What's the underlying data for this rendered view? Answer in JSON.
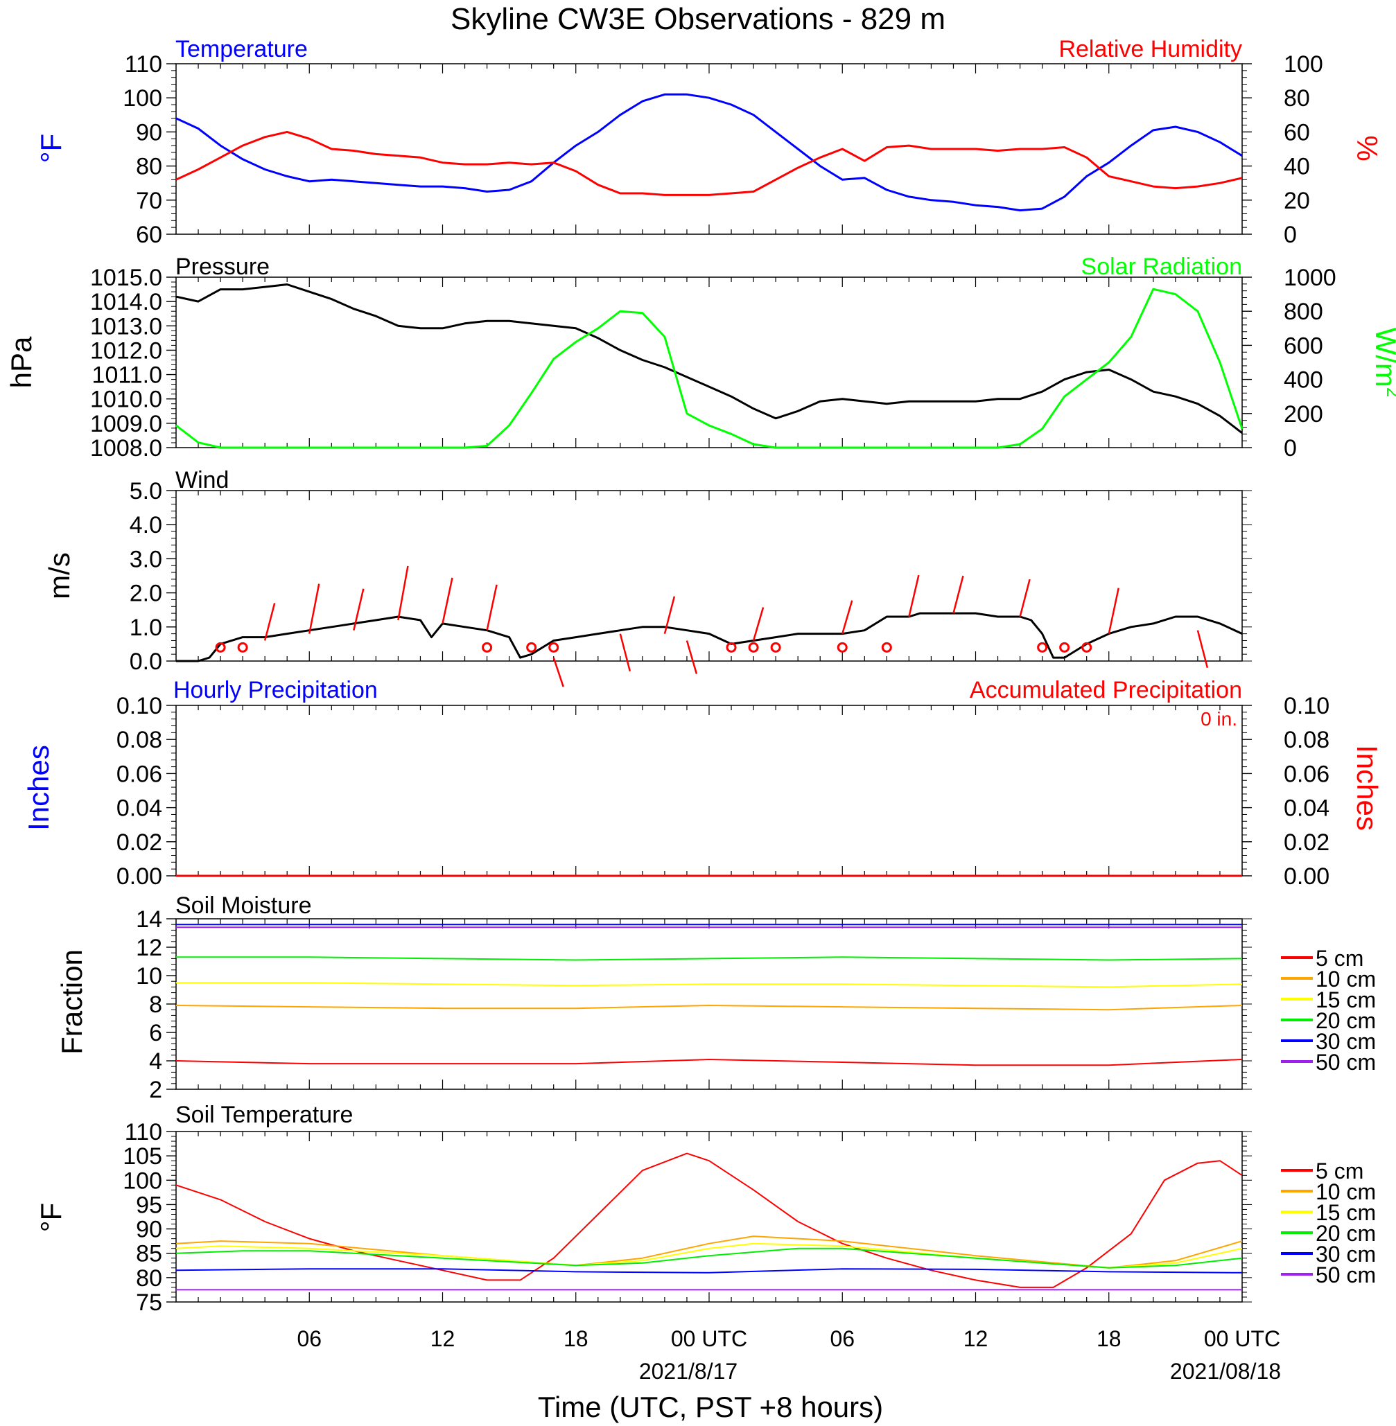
{
  "title": "Skyline CW3E Observations - 829 m",
  "xaxis": {
    "title": "Time (UTC, PST +8 hours)",
    "ticks": [
      "06",
      "12",
      "18",
      "00 UTC",
      "06",
      "12",
      "18",
      "00 UTC"
    ],
    "dates": [
      "2021/8/17",
      "2021/08/18"
    ],
    "start_utc": "2021-08-16 00:00",
    "end_utc": "2021-08-18 00:00"
  },
  "chart_data": [
    {
      "type": "line",
      "id": "temp_rh",
      "left_title": "Temperature",
      "right_title": "Relative Humidity",
      "ylabel_left": "°F",
      "ylabel_right": "%",
      "ylim_left": [
        60,
        110
      ],
      "ylim_right": [
        0,
        100
      ],
      "yticks_left": [
        "60",
        "70",
        "80",
        "90",
        "100",
        "110"
      ],
      "yticks_right": [
        "0",
        "20",
        "40",
        "60",
        "80",
        "100"
      ],
      "series": [
        {
          "axis": "left",
          "color": "#0000ff",
          "x": [
            0,
            1,
            2,
            3,
            4,
            5,
            6,
            7,
            8,
            9,
            10,
            11,
            12,
            13,
            14,
            15,
            16,
            17,
            18,
            19,
            20,
            21,
            22,
            23,
            24,
            25,
            26,
            27,
            28,
            29,
            30,
            31,
            32,
            33,
            34,
            35,
            36,
            37,
            38,
            39,
            40,
            41,
            42,
            43,
            44,
            45,
            46,
            47,
            48
          ],
          "y": [
            94,
            91,
            86,
            82,
            79,
            77,
            75.5,
            76,
            75.5,
            75,
            74.5,
            74,
            74,
            73.5,
            72.5,
            73,
            75.5,
            81,
            86,
            90,
            95,
            99,
            101,
            101,
            100,
            98,
            95,
            90,
            85,
            80,
            76,
            76.5,
            73,
            71,
            70,
            69.5,
            68.5,
            68,
            67,
            67.5,
            71,
            77,
            81,
            86,
            90.5,
            91.5,
            90,
            87,
            83
          ]
        },
        {
          "axis": "right",
          "color": "#ff0000",
          "x": [
            0,
            1,
            2,
            3,
            4,
            5,
            6,
            7,
            8,
            9,
            10,
            11,
            12,
            13,
            14,
            15,
            16,
            17,
            18,
            19,
            20,
            21,
            22,
            23,
            24,
            25,
            26,
            27,
            28,
            29,
            30,
            31,
            32,
            33,
            34,
            35,
            36,
            37,
            38,
            39,
            40,
            41,
            42,
            43,
            44,
            45,
            46,
            47,
            48
          ],
          "y": [
            32,
            38,
            45,
            52,
            57,
            60,
            56,
            50,
            49,
            47,
            46,
            45,
            42,
            41,
            41,
            42,
            41,
            42,
            37,
            29,
            24,
            24,
            23,
            23,
            23,
            24,
            25,
            32,
            39,
            45,
            50,
            43,
            51,
            52,
            50,
            50,
            50,
            49,
            50,
            50,
            51,
            45,
            34,
            31,
            28,
            27,
            28,
            30,
            33
          ]
        }
      ]
    },
    {
      "type": "line",
      "id": "pressure_solar",
      "left_title": "Pressure",
      "right_title": "Solar Radiation",
      "ylabel_left": "hPa",
      "ylabel_right": "W/m",
      "ylabel_right_sup": "2",
      "ylim_left": [
        1008.0,
        1015.0
      ],
      "ylim_right": [
        0,
        1000
      ],
      "yticks_left": [
        "1008.0",
        "1009.0",
        "1010.0",
        "1011.0",
        "1012.0",
        "1013.0",
        "1014.0",
        "1015.0"
      ],
      "yticks_right": [
        "0",
        "200",
        "400",
        "600",
        "800",
        "1000"
      ],
      "series": [
        {
          "axis": "left",
          "color": "#000000",
          "x": [
            0,
            1,
            2,
            3,
            4,
            5,
            6,
            7,
            8,
            9,
            10,
            11,
            12,
            13,
            14,
            15,
            16,
            17,
            18,
            19,
            20,
            21,
            22,
            23,
            24,
            25,
            26,
            27,
            28,
            29,
            30,
            31,
            32,
            33,
            34,
            35,
            36,
            37,
            38,
            39,
            40,
            41,
            42,
            43,
            44,
            45,
            46,
            47,
            48
          ],
          "y": [
            1014.2,
            1014.0,
            1014.5,
            1014.5,
            1014.6,
            1014.7,
            1014.4,
            1014.1,
            1013.7,
            1013.4,
            1013.0,
            1012.9,
            1012.9,
            1013.1,
            1013.2,
            1013.2,
            1013.1,
            1013.0,
            1012.9,
            1012.5,
            1012.0,
            1011.6,
            1011.3,
            1010.9,
            1010.5,
            1010.1,
            1009.6,
            1009.2,
            1009.5,
            1009.9,
            1010.0,
            1009.9,
            1009.8,
            1009.9,
            1009.9,
            1009.9,
            1009.9,
            1010.0,
            1010.0,
            1010.3,
            1010.8,
            1011.1,
            1011.2,
            1010.8,
            1010.3,
            1010.1,
            1009.8,
            1009.3,
            1008.6
          ]
        },
        {
          "axis": "right",
          "color": "#00ff00",
          "x": [
            0,
            1,
            2,
            3,
            4,
            5,
            6,
            7,
            8,
            9,
            10,
            11,
            12,
            13,
            14,
            15,
            16,
            17,
            18,
            19,
            20,
            21,
            22,
            23,
            24,
            25,
            26,
            27,
            28,
            29,
            30,
            31,
            32,
            33,
            34,
            35,
            36,
            37,
            38,
            39,
            40,
            41,
            42,
            43,
            44,
            45,
            46,
            47,
            48
          ],
          "y": [
            130,
            30,
            0,
            0,
            0,
            0,
            0,
            0,
            0,
            0,
            0,
            0,
            0,
            0,
            10,
            130,
            320,
            520,
            620,
            700,
            800,
            790,
            650,
            200,
            130,
            80,
            20,
            0,
            0,
            0,
            0,
            0,
            0,
            0,
            0,
            0,
            0,
            0,
            20,
            110,
            300,
            400,
            500,
            650,
            930,
            900,
            800,
            500,
            110
          ]
        }
      ]
    },
    {
      "type": "line",
      "id": "wind",
      "left_title": "Wind",
      "ylabel_left": "m/s",
      "ylim_left": [
        0.0,
        5.0
      ],
      "yticks_left": [
        "0.0",
        "1.0",
        "2.0",
        "3.0",
        "4.0",
        "5.0"
      ],
      "series": [
        {
          "axis": "left",
          "color": "#000000",
          "x": [
            0,
            1,
            1.5,
            2,
            3,
            4,
            5,
            6,
            7,
            8,
            9,
            10,
            11,
            11.5,
            12,
            13,
            14,
            15,
            15.5,
            16,
            17,
            18,
            19,
            20,
            21,
            22,
            23,
            24,
            25,
            26,
            27,
            28,
            29,
            30,
            31,
            32,
            33,
            33.5,
            34,
            35,
            36,
            37,
            38,
            38.5,
            39,
            39.5,
            40,
            41,
            42,
            43,
            44,
            45,
            46,
            47,
            48
          ],
          "y": [
            0,
            0,
            0.1,
            0.5,
            0.7,
            0.7,
            0.8,
            0.9,
            1.0,
            1.1,
            1.2,
            1.3,
            1.2,
            0.7,
            1.1,
            1.0,
            0.9,
            0.7,
            0.1,
            0.2,
            0.6,
            0.7,
            0.8,
            0.9,
            1.0,
            1.0,
            0.9,
            0.8,
            0.5,
            0.6,
            0.7,
            0.8,
            0.8,
            0.8,
            0.9,
            1.3,
            1.3,
            1.4,
            1.4,
            1.4,
            1.4,
            1.3,
            1.3,
            1.2,
            0.8,
            0.1,
            0.1,
            0.5,
            0.8,
            1.0,
            1.1,
            1.3,
            1.3,
            1.1,
            0.8
          ]
        }
      ],
      "barb_color": "#ff0000"
    },
    {
      "type": "line",
      "id": "precip",
      "left_title": "Hourly Precipitation",
      "right_title": "Accumulated Precipitation",
      "annotation": "0 in.",
      "ylabel_left": "Inches",
      "ylabel_right": "Inches",
      "ylim_left": [
        0.0,
        0.1
      ],
      "ylim_right": [
        0.0,
        0.1
      ],
      "yticks_left": [
        "0.00",
        "0.02",
        "0.04",
        "0.06",
        "0.08",
        "0.10"
      ],
      "yticks_right": [
        "0.00",
        "0.02",
        "0.04",
        "0.06",
        "0.08",
        "0.10"
      ],
      "series": [
        {
          "axis": "left",
          "color": "#ff0000",
          "x": [
            0,
            48
          ],
          "y": [
            0,
            0
          ]
        }
      ]
    },
    {
      "type": "line",
      "id": "soil_moisture",
      "left_title": "Soil Moisture",
      "ylabel_left": "Fraction",
      "ylim_left": [
        2,
        14
      ],
      "yticks_left": [
        "2",
        "4",
        "6",
        "8",
        "10",
        "12",
        "14"
      ],
      "legend": [
        "5 cm",
        "10 cm",
        "15 cm",
        "20 cm",
        "30 cm",
        "50 cm"
      ],
      "legend_colors": [
        "#ff0000",
        "#ffa500",
        "#ffff00",
        "#00ee00",
        "#0000ff",
        "#a020f0"
      ],
      "series": [
        {
          "color": "#ff0000",
          "x": [
            0,
            6,
            12,
            18,
            24,
            30,
            36,
            42,
            48
          ],
          "y": [
            4.0,
            3.8,
            3.8,
            3.8,
            4.1,
            3.9,
            3.7,
            3.7,
            4.1
          ]
        },
        {
          "color": "#ffa500",
          "x": [
            0,
            6,
            12,
            18,
            24,
            30,
            36,
            42,
            48
          ],
          "y": [
            7.9,
            7.8,
            7.7,
            7.7,
            7.9,
            7.8,
            7.7,
            7.6,
            7.9
          ]
        },
        {
          "color": "#ffff00",
          "x": [
            0,
            6,
            12,
            18,
            24,
            30,
            36,
            42,
            48
          ],
          "y": [
            9.5,
            9.5,
            9.4,
            9.3,
            9.4,
            9.4,
            9.3,
            9.2,
            9.4
          ]
        },
        {
          "color": "#00ee00",
          "x": [
            0,
            6,
            12,
            18,
            24,
            30,
            36,
            42,
            48
          ],
          "y": [
            11.3,
            11.3,
            11.2,
            11.1,
            11.2,
            11.3,
            11.2,
            11.1,
            11.2
          ]
        },
        {
          "color": "#0000ff",
          "x": [
            0,
            48
          ],
          "y": [
            13.6,
            13.6
          ]
        },
        {
          "color": "#a020f0",
          "x": [
            0,
            48
          ],
          "y": [
            13.4,
            13.4
          ]
        }
      ]
    },
    {
      "type": "line",
      "id": "soil_temp",
      "left_title": "Soil Temperature",
      "ylabel_left": "°F",
      "ylim_left": [
        75,
        110
      ],
      "yticks_left": [
        "75",
        "80",
        "85",
        "90",
        "95",
        "100",
        "105",
        "110"
      ],
      "legend": [
        "5 cm",
        "10 cm",
        "15 cm",
        "20 cm",
        "30 cm",
        "50 cm"
      ],
      "legend_colors": [
        "#ff0000",
        "#ffa500",
        "#ffff00",
        "#00ee00",
        "#0000ff",
        "#a020f0"
      ],
      "series": [
        {
          "color": "#ff0000",
          "x": [
            0,
            2,
            4,
            6,
            8,
            10,
            12,
            14,
            15.5,
            17,
            19,
            21,
            23,
            24,
            26,
            28,
            30,
            32,
            34,
            36,
            38,
            39.5,
            41,
            43,
            44.5,
            46,
            47,
            48
          ],
          "y": [
            99,
            96,
            91.5,
            88,
            85.5,
            83.5,
            81.5,
            79.5,
            79.5,
            84,
            93,
            102,
            105.5,
            104,
            98,
            91.5,
            87,
            84,
            81.5,
            79.5,
            78,
            78,
            82,
            89,
            100,
            103.5,
            104,
            101
          ]
        },
        {
          "color": "#ffa500",
          "x": [
            0,
            2,
            6,
            12,
            18,
            21,
            24,
            26,
            30,
            36,
            42,
            45,
            48
          ],
          "y": [
            87,
            87.5,
            87,
            84.5,
            82.5,
            84,
            87,
            88.5,
            87.5,
            84.5,
            82,
            83.5,
            87.5
          ]
        },
        {
          "color": "#ffff00",
          "x": [
            0,
            2,
            6,
            12,
            18,
            21,
            24,
            26,
            30,
            36,
            42,
            45,
            48
          ],
          "y": [
            86,
            86.5,
            86,
            84.5,
            82.5,
            83.5,
            86,
            87,
            86.5,
            84,
            82,
            83,
            86
          ]
        },
        {
          "color": "#00ee00",
          "x": [
            0,
            3,
            6,
            12,
            18,
            21,
            24,
            28,
            30,
            36,
            42,
            45,
            48
          ],
          "y": [
            85,
            85.5,
            85.5,
            84,
            82.5,
            83,
            84.5,
            86,
            86,
            84,
            82,
            82.5,
            84
          ]
        },
        {
          "color": "#0000ff",
          "x": [
            0,
            6,
            12,
            18,
            24,
            30,
            36,
            42,
            48
          ],
          "y": [
            81.5,
            81.8,
            81.8,
            81.2,
            81,
            81.8,
            81.7,
            81.2,
            81
          ]
        },
        {
          "color": "#a020f0",
          "x": [
            0,
            48
          ],
          "y": [
            77.5,
            77.5
          ]
        }
      ]
    }
  ]
}
